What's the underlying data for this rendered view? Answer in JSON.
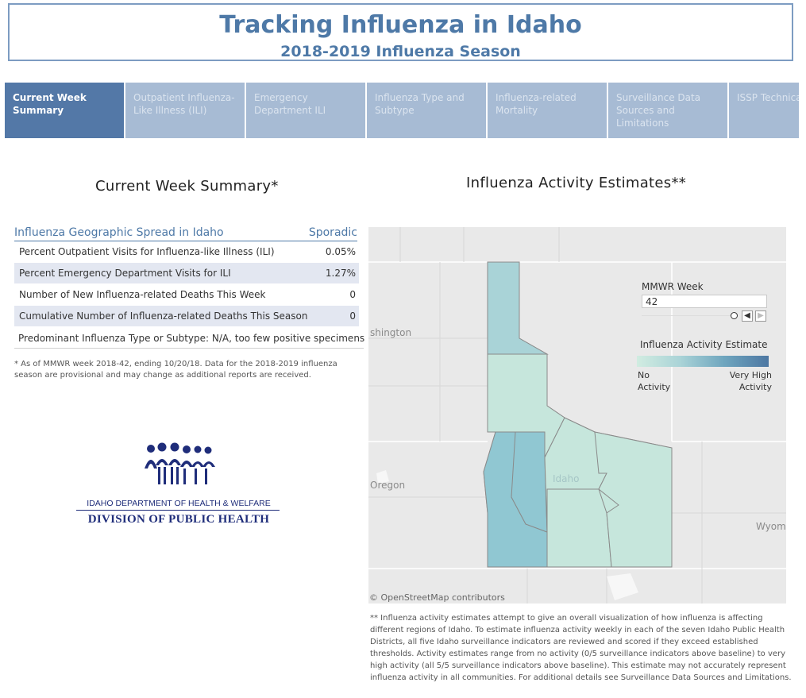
{
  "header": {
    "title": "Tracking Influenza in Idaho",
    "subtitle": "2018-2019 Influenza Season"
  },
  "tabs": [
    {
      "label": "Current Week\nSummary",
      "active": true
    },
    {
      "label": "Outpatient Influenza-\nLike Illness (ILI)",
      "active": false
    },
    {
      "label": "Emergency\nDepartment ILI",
      "active": false
    },
    {
      "label": "Influenza Type and\nSubtype",
      "active": false
    },
    {
      "label": "Influenza-related\nMortality",
      "active": false
    },
    {
      "label": "Surveillance Data\nSources and\nLimitations",
      "active": false
    },
    {
      "label": "ISSP Technica",
      "active": false
    }
  ],
  "summary": {
    "title": "Current Week Summary*",
    "spread_label": "Influenza Geographic Spread in Idaho",
    "spread_value": "Sporadic",
    "rows": [
      {
        "label": "Percent Outpatient Visits for Influenza-like Illness (ILI)",
        "value": "0.05%"
      },
      {
        "label": "Percent Emergency Department Visits for ILI",
        "value": "1.27%"
      },
      {
        "label": "Number of New Influenza-related Deaths This Week",
        "value": "0"
      },
      {
        "label": "Cumulative Number of Influenza-related Deaths This Season",
        "value": "0"
      }
    ],
    "predominant": "Predominant Influenza Type or Subtype: N/A, too few positive specimens",
    "footnote": "* As of MMWR week 2018-42, ending 10/20/18. Data for the 2018-2019 influenza season are provisional and may change as additional reports are received."
  },
  "logo": {
    "line1": "IDAHO DEPARTMENT OF HEALTH & WELFARE",
    "line2": "DIVISION OF PUBLIC HEALTH",
    "color": "#1f2d7a"
  },
  "map": {
    "title": "Influenza Activity Estimates**",
    "labels": {
      "washington": "shington",
      "oregon": "Oregon",
      "idaho": "Idaho",
      "wyoming": "Wyom"
    },
    "attribution": "© OpenStreetMap contributors",
    "week_label": "MMWR Week",
    "week_value": "42",
    "legend_title": "Influenza Activity Estimate",
    "legend_low": "No\nActivity",
    "legend_high": "Very High\nActivity",
    "colors": {
      "low": "#d1ece1",
      "mid": "#a9d3d7",
      "high": "#4d77a2"
    },
    "footnote": "** Influenza activity estimates attempt to give an overall visualization of how influenza is affecting different regions of Idaho. To estimate influenza activity weekly in each of the seven Idaho Public Health Districts, all five Idaho surveillance indicators are reviewed and scored if they exceed established thresholds. Activity estimates range from no activity (0/5 surveillance indicators above baseline) to very high activity (all 5/5 surveillance indicators above baseline). This estimate may not accurately represent influenza activity in all communities. For additional details see Surveillance Data Sources and Limitations."
  }
}
